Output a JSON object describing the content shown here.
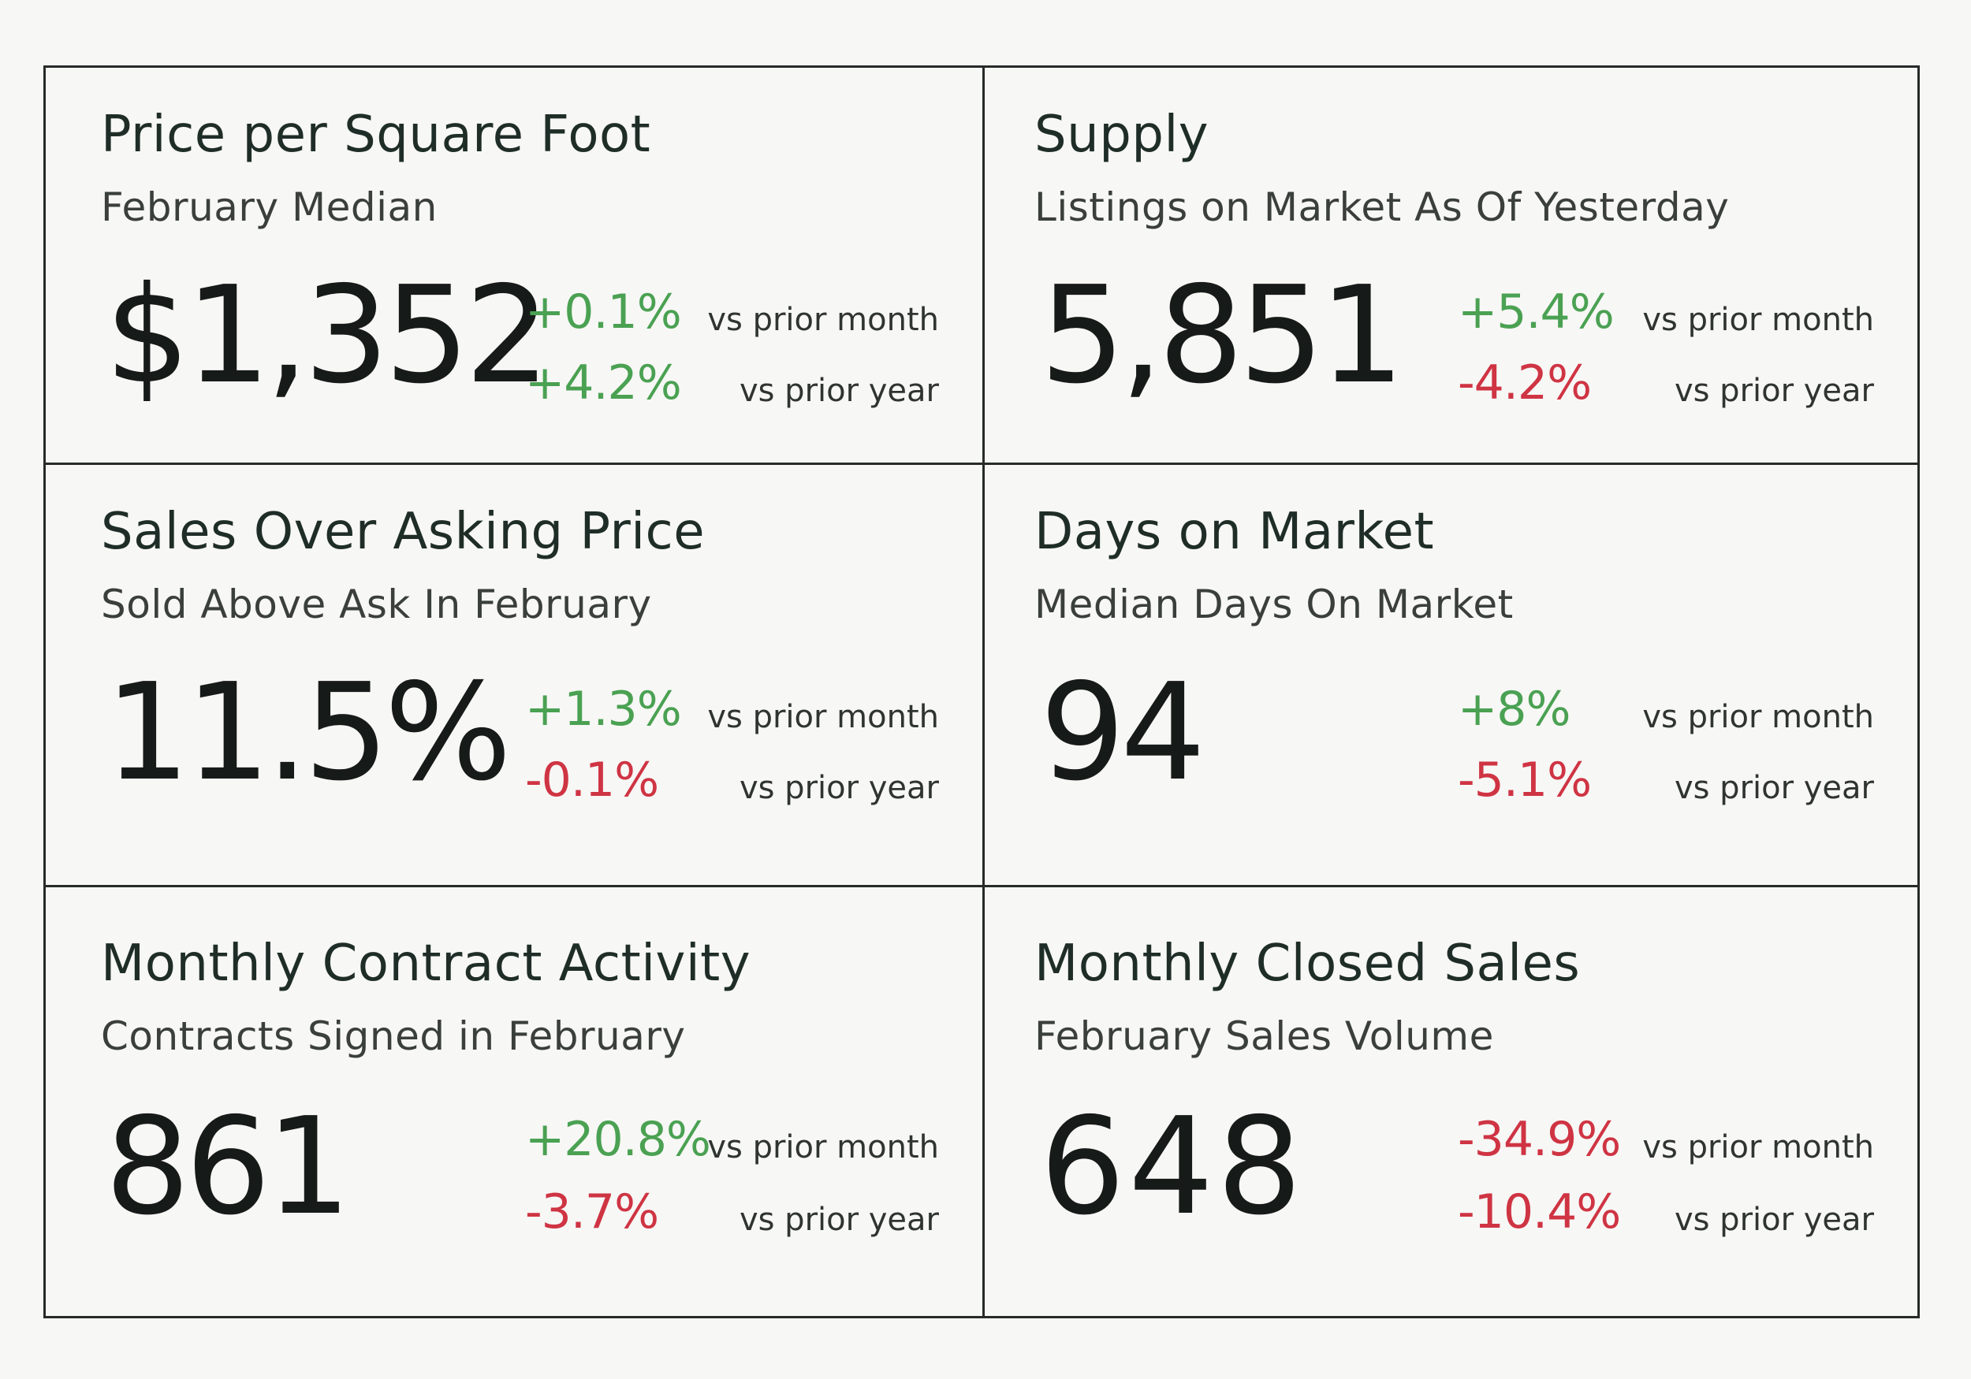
{
  "cards": [
    {
      "title": "Price per Square Foot",
      "subtitle": "February Median",
      "value": "$1,352",
      "month_change": "+0.1%",
      "year_change": "+4.2%",
      "month_label": "vs prior month",
      "year_label": "vs prior year"
    },
    {
      "title": "Supply",
      "subtitle": "Listings on Market As Of Yesterday",
      "value": "5,851",
      "month_change": "+5.4%",
      "year_change": "-4.2%",
      "month_label": "vs prior month",
      "year_label": "vs prior year"
    },
    {
      "title": "Sales Over Asking Price",
      "subtitle": "Sold Above Ask In February",
      "value": "11.5%",
      "month_change": "+1.3%",
      "year_change": "-0.1%",
      "month_label": "vs prior month",
      "year_label": "vs prior year"
    },
    {
      "title": "Days on Market",
      "subtitle": "Median Days On Market",
      "value": "94",
      "month_change": "+8%",
      "year_change": "-5.1%",
      "month_label": "vs prior month",
      "year_label": "vs prior year"
    },
    {
      "title": "Monthly Contract Activity",
      "subtitle": "Contracts Signed in February",
      "value": "861",
      "month_change": "+20.8%",
      "year_change": "-3.7%",
      "month_label": "vs prior month",
      "year_label": "vs prior year"
    },
    {
      "title": "Monthly Closed Sales",
      "subtitle": "February Sales Volume",
      "value": "648",
      "month_change": "-34.9%",
      "year_change": "-10.4%",
      "month_label": "vs prior month",
      "year_label": "vs prior year"
    }
  ],
  "colors": {
    "positive": "#4aa152",
    "negative": "#cf3443",
    "border": "#262a28"
  }
}
